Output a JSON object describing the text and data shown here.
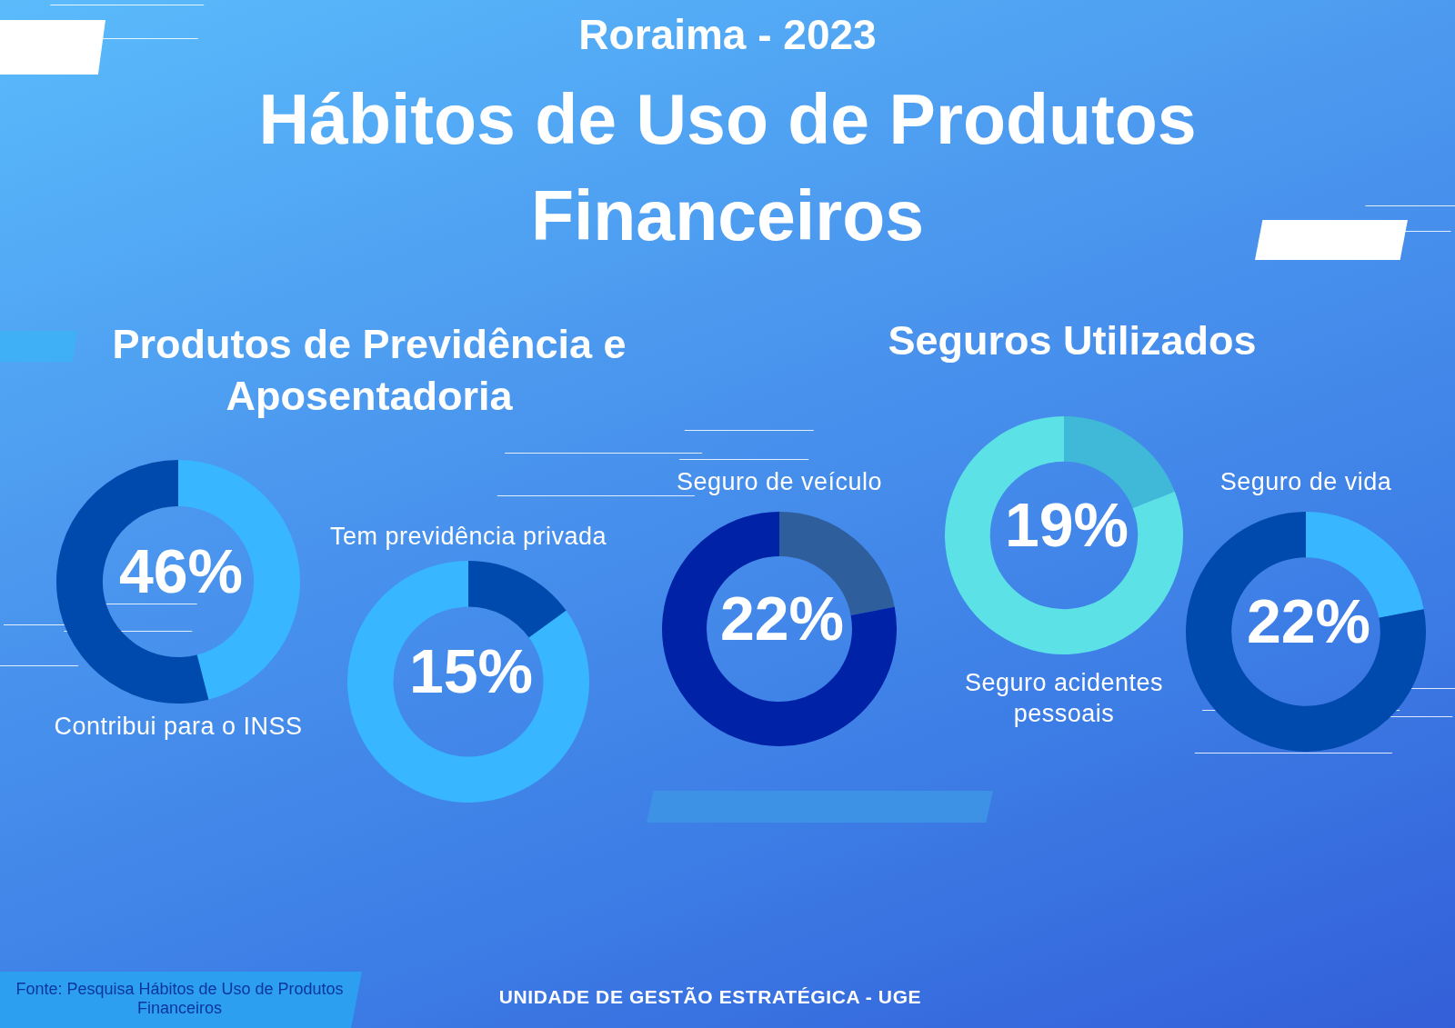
{
  "chart_data": [
    {
      "type": "other",
      "title": "Hábitos de Uso de Produtos Financeiros",
      "subtitle": "Roraima - 2023"
    },
    {
      "type": "other",
      "title": "Produtos de Previdência e Aposentadoria"
    },
    {
      "type": "donut",
      "title": "Contribui para o INSS",
      "categories": [
        null,
        null
      ],
      "values": [
        46,
        54
      ],
      "colors": [
        "#38b6ff",
        "#004aad"
      ],
      "value_labels": [
        "46%",
        null
      ]
    },
    {
      "type": "donut",
      "title": "Tem previdência privada",
      "categories": [
        null,
        null
      ],
      "values": [
        15,
        85
      ],
      "colors": [
        "#004aad",
        "#38b6ff"
      ],
      "value_labels": [
        "15%",
        null
      ]
    },
    {
      "type": "other",
      "title": "Seguros Utilizados"
    },
    {
      "type": "donut",
      "title": "Seguro de veículo",
      "categories": [
        null,
        null
      ],
      "values": [
        22,
        78
      ],
      "colors": [
        "#2e5f9c",
        "#0022a6"
      ],
      "value_labels": [
        "22%",
        null
      ]
    },
    {
      "type": "donut",
      "title": "Seguro acidentes pessoais",
      "categories": [
        null,
        null
      ],
      "values": [
        19,
        81
      ],
      "colors": [
        "#40b8d8",
        "#5ce1e6"
      ],
      "value_labels": [
        "19%",
        null
      ]
    },
    {
      "type": "donut",
      "title": "Seguro de vida",
      "categories": [
        null,
        null
      ],
      "values": [
        22,
        78
      ],
      "colors": [
        "#38b6ff",
        "#004aad"
      ],
      "value_labels": [
        "22%",
        null
      ]
    },
    {
      "type": "other",
      "annotations": [
        "Fonte: Pesquisa Hábitos de Uso de Produtos Financeiros",
        "UNIDADE DE GESTÃO ESTRATÉGICA - UGE"
      ]
    }
  ]
}
